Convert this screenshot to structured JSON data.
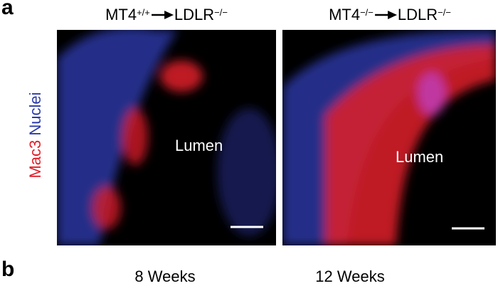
{
  "panel_a": {
    "label": "a",
    "y_label": {
      "stain": "Mac3",
      "counterstain": "Nuclei"
    },
    "images": [
      {
        "donor": "MT4",
        "donor_sup": "+/+",
        "recipient": "LDLR",
        "recipient_sup": "−/−",
        "lumen": "Lumen"
      },
      {
        "donor": "MT4",
        "donor_sup": "−/−",
        "recipient": "LDLR",
        "recipient_sup": "−/−",
        "lumen": "Lumen"
      }
    ]
  },
  "panel_b": {
    "label": "b",
    "captions": [
      "8 Weeks",
      "12 Weeks"
    ]
  }
}
